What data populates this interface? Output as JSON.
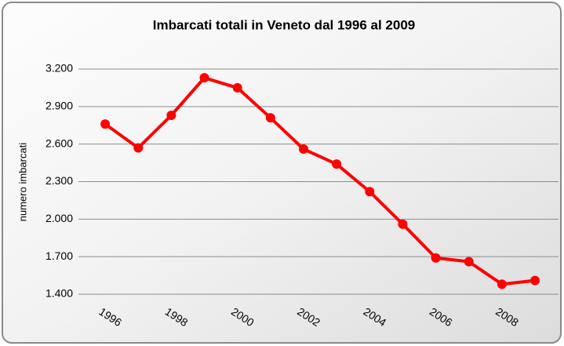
{
  "chart_data": {
    "type": "line",
    "title": "Imbarcati totali in Veneto dal 1996 al 2009",
    "y_label": "numero imbarcati",
    "categories": [
      "1996",
      null,
      "1998",
      null,
      "2000",
      null,
      "2002",
      null,
      "2004",
      null,
      "2006",
      null,
      "2008",
      null
    ],
    "series": [
      {
        "name": "Imbarcati",
        "color": "#ff0000",
        "values": [
          2760,
          2570,
          2830,
          3130,
          3050,
          2810,
          2560,
          2440,
          2220,
          1960,
          1690,
          1660,
          1480,
          1510
        ]
      }
    ],
    "ylim": [
      1400,
      3200
    ],
    "yticks": [
      {
        "value": 1400,
        "label": "1.400"
      },
      {
        "value": 1700,
        "label": "1.700"
      },
      {
        "value": 2000,
        "label": "2.000"
      },
      {
        "value": 2300,
        "label": "2.300"
      },
      {
        "value": 2600,
        "label": "2.600"
      },
      {
        "value": 2900,
        "label": "2.900"
      },
      {
        "value": 3200,
        "label": "3.200"
      }
    ],
    "grid": true
  }
}
